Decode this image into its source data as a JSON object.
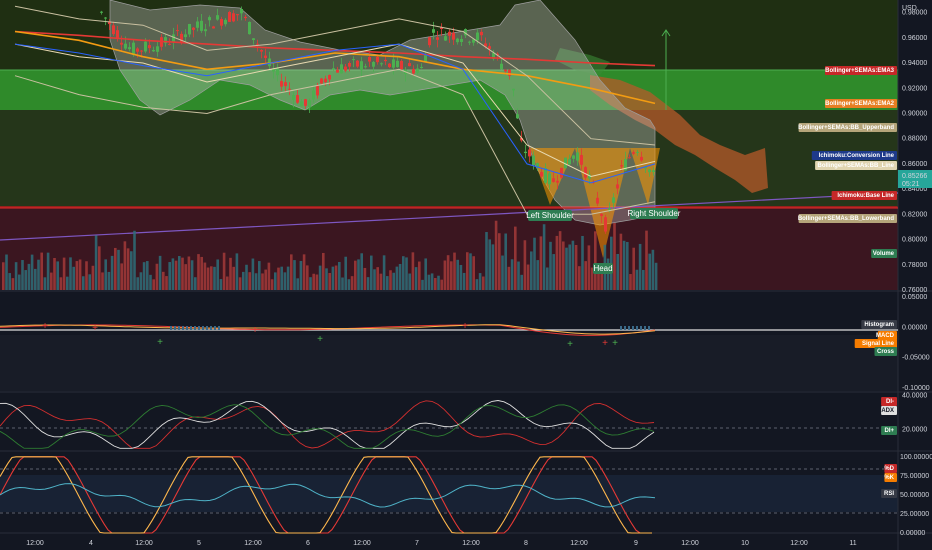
{
  "chart_data": {
    "type": "line",
    "currency": "USD",
    "x_ticks": [
      "12:00",
      "4",
      "12:00",
      "5",
      "12:00",
      "6",
      "12:00",
      "7",
      "12:00",
      "8",
      "12:00",
      "9",
      "12:00",
      "10",
      "12:00",
      "11"
    ],
    "price_axis": {
      "ticks": [
        "0.98000",
        "0.96000",
        "0.94000",
        "0.92000",
        "0.90000",
        "0.88000",
        "0.86000",
        "0.84000",
        "0.82000",
        "0.80000",
        "0.78000",
        "0.76000"
      ],
      "ylim": [
        0.76,
        0.99
      ],
      "current_price": "0.85266",
      "countdown": "05:21"
    },
    "series": [
      {
        "name": "Bollinger+SEMAs:EMA3",
        "color": "#e53935",
        "values": [
          0.965,
          0.962,
          0.958,
          0.955,
          0.952,
          0.95,
          0.948,
          0.945,
          0.943,
          0.94,
          0.938
        ]
      },
      {
        "name": "Bollinger+SEMAs:EMA2",
        "color": "#f39c12",
        "values": [
          0.965,
          0.958,
          0.945,
          0.935,
          0.94,
          0.948,
          0.945,
          0.935,
          0.93,
          0.92,
          0.908
        ]
      },
      {
        "name": "Bollinger+SEMAs:BB_Upperband",
        "color": "#c9c0a0",
        "values": [
          0.985,
          0.975,
          0.97,
          0.95,
          0.955,
          0.965,
          0.975,
          0.965,
          0.93,
          0.88,
          0.875
        ]
      },
      {
        "name": "Bollinger+SEMAs:BB_Line",
        "color": "#e8d9b0",
        "values": [
          0.955,
          0.945,
          0.94,
          0.925,
          0.935,
          0.945,
          0.955,
          0.94,
          0.875,
          0.85,
          0.862
        ]
      },
      {
        "name": "Bollinger+SEMAs:BB_Lowerband",
        "color": "#c9c0a0",
        "values": [
          0.93,
          0.915,
          0.905,
          0.9,
          0.915,
          0.925,
          0.935,
          0.915,
          0.82,
          0.82,
          0.83
        ]
      },
      {
        "name": "Ichimoku:Conversion Line",
        "color": "#2962ff",
        "values": [
          0.955,
          0.948,
          0.938,
          0.93,
          0.94,
          0.95,
          0.955,
          0.935,
          0.86,
          0.845,
          0.86
        ]
      },
      {
        "name": "Ichimoku:Base Line",
        "color": "#ef5350",
        "values": [
          0.84,
          0.84,
          0.84,
          0.84,
          0.84,
          0.84,
          0.84,
          0.84,
          0.84,
          0.84,
          0.84
        ]
      }
    ],
    "legend_labels": [
      {
        "text": "Bollinger+SEMAs:EMA3",
        "color": "#c62828"
      },
      {
        "text": "Bollinger+SEMAs:EMA2",
        "color": "#e67e22"
      },
      {
        "text": "Bollinger+SEMAs:BB_Upperband",
        "color": "#b5a57a"
      },
      {
        "text": "Ichimoku:Base Line",
        "color": "#c62828"
      },
      {
        "text": "Ichimoku:Conversion Line",
        "color": "#1e3a8a"
      },
      {
        "text": "Bollinger+SEMAs:BB_Line",
        "color": "#e0d4b0"
      },
      {
        "text": "Bollinger+SEMAs:BB_Lowerband",
        "color": "#b5a57a"
      },
      {
        "text": "Volume",
        "color": "#2e7d52"
      }
    ],
    "annotations": [
      "Left Shoulder",
      "Right Shoulder",
      "Head"
    ],
    "macd": {
      "ticks": [
        "0.05000",
        "0.00000",
        "-0.05000",
        "-0.10000"
      ],
      "ylim": [
        -0.105,
        0.06
      ],
      "labels": [
        "Histogram",
        "MACD",
        "Signal Line",
        "Cross"
      ]
    },
    "dmi": {
      "ticks": [
        "40.0000",
        "20.0000"
      ],
      "ylim": [
        8,
        42
      ],
      "labels": [
        "DI-",
        "ADX",
        "DI+"
      ]
    },
    "rsi": {
      "ticks": [
        "100.00000",
        "75.00000",
        "50.00000",
        "25.00000",
        "0.00000"
      ],
      "ylim": [
        0,
        105
      ],
      "labels": [
        "%D",
        "%K",
        "RSI"
      ]
    }
  }
}
